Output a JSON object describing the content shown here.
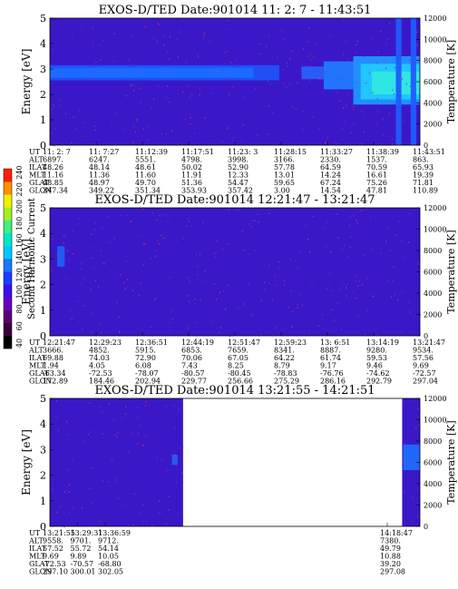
{
  "colorbar": {
    "label": "Second Harmonic Current",
    "ticks": [
      "40",
      "60",
      "80",
      "100",
      "120",
      "140",
      "160",
      "180",
      "200",
      "220",
      "240"
    ],
    "colors": [
      "#000000",
      "#3a003a",
      "#5a007a",
      "#6a00c0",
      "#3a10f0",
      "#1e3cff",
      "#1a78ff",
      "#00c8ff",
      "#00e8c8",
      "#40f080",
      "#a0f020",
      "#f0f000",
      "#ff9000",
      "#ff2000"
    ]
  },
  "chart_data": [
    {
      "type": "heatmap",
      "title": "EXOS-D/TED   Date:901014   11: 2: 7 - 11:43:51",
      "ylabel": "Energy [eV]",
      "y2label": "Temperature [K]",
      "ylim": [
        0,
        5
      ],
      "yticks": [
        0,
        1,
        2,
        3,
        4,
        5
      ],
      "y2ticks": [
        0,
        2000,
        4000,
        6000,
        8000,
        10000,
        12000
      ],
      "background": "#3a18c8",
      "bands": [
        {
          "e0": 2.55,
          "e1": 3.15,
          "t0": 0.0,
          "t1": 0.62,
          "color": "#1e52f8"
        },
        {
          "e0": 2.65,
          "e1": 3.05,
          "t0": 0.0,
          "t1": 0.55,
          "color": "#1e6cff"
        },
        {
          "e0": 2.6,
          "e1": 3.1,
          "t0": 0.68,
          "t1": 0.74,
          "color": "#2860f8"
        },
        {
          "e0": 2.2,
          "e1": 3.3,
          "t0": 0.74,
          "t1": 0.82,
          "color": "#1f7aff"
        },
        {
          "e0": 1.6,
          "e1": 3.5,
          "t0": 0.82,
          "t1": 1.0,
          "color": "#1f96ff"
        },
        {
          "e0": 1.8,
          "e1": 3.2,
          "t0": 0.84,
          "t1": 1.0,
          "color": "#22c8ff"
        },
        {
          "e0": 2.0,
          "e1": 2.9,
          "t0": 0.87,
          "t1": 1.0,
          "color": "#30e8e0"
        },
        {
          "e0": 0.0,
          "e1": 5.0,
          "t0": 0.935,
          "t1": 0.95,
          "color": "#1e5cff"
        },
        {
          "e0": 0.0,
          "e1": 5.0,
          "t0": 0.975,
          "t1": 0.99,
          "color": "#1e5cff"
        }
      ],
      "xtick_labels": [
        "11: 2: 7",
        "11: 7:27",
        "11:12:39",
        "11:17:51",
        "11:23: 3",
        "11:28:15",
        "11:33:27",
        "11:38:39",
        "11:43:51"
      ],
      "rows": [
        {
          "name": "UT",
          "values": [
            "11: 2: 7",
            "11: 7:27",
            "11:12:39",
            "11:17:51",
            "11:23: 3",
            "11:28:15",
            "11:33:27",
            "11:38:39",
            "11:43:51"
          ]
        },
        {
          "name": "ALT",
          "values": [
            "6897.",
            "6247.",
            "5551.",
            "4798.",
            "3998.",
            "3166.",
            "2330.",
            "1537.",
            "863."
          ]
        },
        {
          "name": "ILAT",
          "values": [
            "48.26",
            "48.14",
            "48.61",
            "50.02",
            "52.90",
            "57.78",
            "64.59",
            "70.59",
            "65.93"
          ]
        },
        {
          "name": "MLT",
          "values": [
            "11.16",
            "11.36",
            "11.60",
            "11.91",
            "12.33",
            "13.01",
            "14.24",
            "16.61",
            "19.39"
          ]
        },
        {
          "name": "GLAT",
          "values": [
            "48.85",
            "48.97",
            "49.70",
            "51.36",
            "54.47",
            "59.65",
            "67.24",
            "75.26",
            "71.81"
          ]
        },
        {
          "name": "GLON",
          "values": [
            "347.34",
            "349.22",
            "351.34",
            "353.93",
            "357.42",
            "3.00",
            "14.54",
            "47.81",
            "110.89"
          ]
        }
      ]
    },
    {
      "type": "heatmap",
      "title": "EXOS-D/TED   Date:901014   12:21:47 - 13:21:47",
      "ylabel": "Energy [eV]",
      "y2label": "Temperature [K]",
      "ylim": [
        0,
        5
      ],
      "yticks": [
        0,
        1,
        2,
        3,
        4,
        5
      ],
      "y2ticks": [
        0,
        2000,
        4000,
        6000,
        8000,
        10000,
        12000
      ],
      "background": "#3a18c8",
      "bands": [
        {
          "e0": 2.7,
          "e1": 3.5,
          "t0": 0.02,
          "t1": 0.04,
          "color": "#1e60f8"
        }
      ],
      "xtick_labels": [
        "12:21:47",
        "12:29:23",
        "12:36:51",
        "12:44:19",
        "12:51:47",
        "12:59:23",
        "13: 6:51",
        "13:14:19",
        "13:21:47"
      ],
      "rows": [
        {
          "name": "UT",
          "values": [
            "12:21:47",
            "12:29:23",
            "12:36:51",
            "12:44:19",
            "12:51:47",
            "12:59:23",
            "13: 6:51",
            "13:14:19",
            "13:21:47"
          ]
        },
        {
          "name": "ALT",
          "values": [
            "3666.",
            "4852.",
            "5915.",
            "6853.",
            "7659.",
            "8341.",
            "8887.",
            "9280.",
            "9534."
          ]
        },
        {
          "name": "ILAT",
          "values": [
            "69.88",
            "74.03",
            "72.90",
            "70.06",
            "67.05",
            "64.22",
            "61.74",
            "59.53",
            "57.56"
          ]
        },
        {
          "name": "MLT",
          "values": [
            "1.94",
            "4.05",
            "6.08",
            "7.43",
            "8.25",
            "8.79",
            "9.17",
            "9.46",
            "9.69"
          ]
        },
        {
          "name": "GLAT",
          "values": [
            "-63.34",
            "-72.53",
            "-78.07",
            "-80.57",
            "-80.45",
            "-78.83",
            "-76.76",
            "-74.62",
            "-72.57"
          ]
        },
        {
          "name": "GLON",
          "values": [
            "172.89",
            "184.46",
            "202.94",
            "229.77",
            "256.66",
            "275.29",
            "286.16",
            "292.79",
            "297.04"
          ]
        }
      ]
    },
    {
      "type": "heatmap",
      "title": "EXOS-D/TED   Date:901014   13:21:55 - 14:21:51",
      "ylabel": "Energy [eV]",
      "y2label": "Temperature [K]",
      "ylim": [
        0,
        5
      ],
      "yticks": [
        0,
        1,
        2,
        3,
        4,
        5
      ],
      "y2ticks": [
        0,
        2000,
        4000,
        6000,
        8000,
        10000,
        12000
      ],
      "background": "#3a18c8",
      "coverage": [
        [
          0.0,
          0.36
        ],
        [
          0.952,
          1.0
        ]
      ],
      "bands": [
        {
          "e0": 2.4,
          "e1": 2.8,
          "t0": 0.33,
          "t1": 0.345,
          "color": "#1e60f8"
        },
        {
          "e0": 2.2,
          "e1": 3.2,
          "t0": 0.955,
          "t1": 1.0,
          "color": "#1e6cff"
        }
      ],
      "xtick_labels": [
        "13:21:55",
        "13:29:31",
        "13:36:59",
        "14:18:47"
      ],
      "rows": [
        {
          "name": "UT",
          "values": [
            "13:21:55",
            "13:29:31",
            "13:36:59",
            "14:18:47"
          ]
        },
        {
          "name": "ALT",
          "values": [
            "9558.",
            "9701.",
            "9712.",
            "7380."
          ]
        },
        {
          "name": "ILAT",
          "values": [
            "57.52",
            "55.72",
            "54.14",
            "49.79"
          ]
        },
        {
          "name": "MLT",
          "values": [
            "9.69",
            "9.89",
            "10.05",
            "10.88"
          ]
        },
        {
          "name": "GLAT",
          "values": [
            "-72.53",
            "-70.57",
            "-68.80",
            "39.20"
          ]
        },
        {
          "name": "GLON",
          "values": [
            "297.10",
            "300.01",
            "302.05",
            "297.08"
          ]
        }
      ]
    }
  ]
}
